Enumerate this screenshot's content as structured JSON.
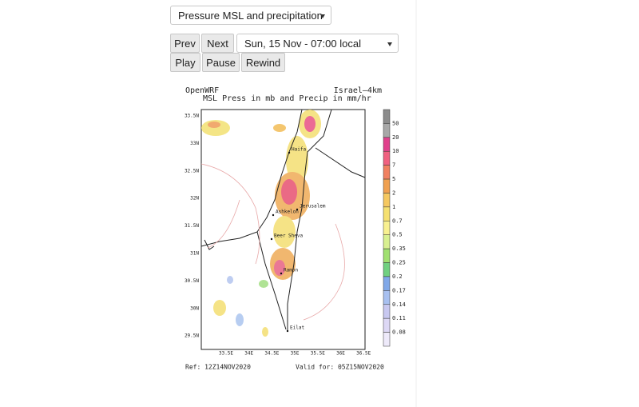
{
  "controls": {
    "variable_select": "Pressure MSL and precipitation",
    "prev": "Prev",
    "next": "Next",
    "time_select": "Sun, 15 Nov - 07:00 local",
    "play": "Play",
    "pause": "Pause",
    "rewind": "Rewind"
  },
  "map": {
    "model": "OpenWRF",
    "domain": "Israel—4km",
    "subtitle": "MSL Press in mb and Precip in mm/hr",
    "y_labels": [
      "33.5N",
      "33N",
      "32.5N",
      "32N",
      "31.5N",
      "31N",
      "30.5N",
      "30N",
      "29.5N"
    ],
    "x_labels": [
      "33.5E",
      "34E",
      "34.5E",
      "35E",
      "35.5E",
      "36E",
      "36.5E"
    ],
    "colorbar_labels": [
      "50",
      "20",
      "10",
      "7",
      "5",
      "2",
      "1",
      "0.7",
      "0.5",
      "0.35",
      "0.25",
      "0.2",
      "0.17",
      "0.14",
      "0.11",
      "0.08"
    ],
    "cities": [
      "Haifa",
      "Ashkelon",
      "Jerusalem",
      "Beer Sheva",
      "Ramon",
      "Eilat"
    ],
    "ref": "Ref: 12Z14NOV2020",
    "valid": "Valid for: 05Z15NOV2020"
  }
}
